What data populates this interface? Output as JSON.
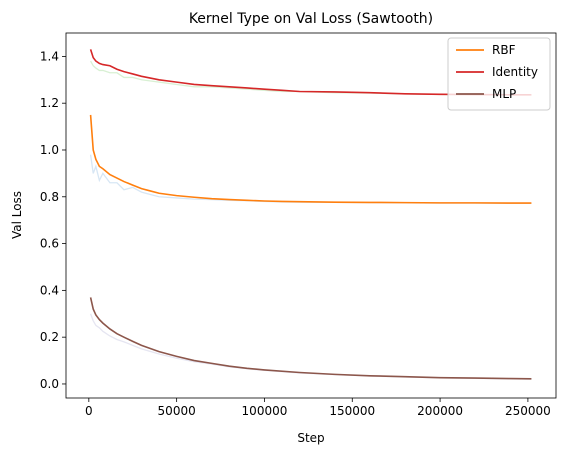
{
  "chart_data": {
    "type": "line",
    "title": "Kernel Type on Val Loss (Sawtooth)",
    "xlabel": "Step",
    "ylabel": "Val Loss",
    "xlim": [
      -13000,
      266000
    ],
    "ylim": [
      -0.06,
      1.5
    ],
    "xticks": [
      {
        "value": 0,
        "label": "0"
      },
      {
        "value": 50000,
        "label": "50000"
      },
      {
        "value": 100000,
        "label": "100000"
      },
      {
        "value": 150000,
        "label": "150000"
      },
      {
        "value": 200000,
        "label": "200000"
      },
      {
        "value": 250000,
        "label": "250000"
      }
    ],
    "yticks": [
      {
        "value": 0.0,
        "label": "0.0"
      },
      {
        "value": 0.2,
        "label": "0.2"
      },
      {
        "value": 0.4,
        "label": "0.4"
      },
      {
        "value": 0.6,
        "label": "0.6"
      },
      {
        "value": 0.8,
        "label": "0.8"
      },
      {
        "value": 1.0,
        "label": "1.0"
      },
      {
        "value": 1.2,
        "label": "1.2"
      },
      {
        "value": 1.4,
        "label": "1.4"
      }
    ],
    "grid": false,
    "legend_position": "top-right",
    "series": [
      {
        "name": "RBF",
        "color": "#ff7f0e",
        "raw_color": "#c6dbef",
        "x": [
          1000,
          2500,
          4000,
          6000,
          8000,
          12000,
          16000,
          20000,
          25000,
          30000,
          35000,
          40000,
          50000,
          60000,
          70000,
          80000,
          90000,
          100000,
          110000,
          120000,
          140000,
          160000,
          180000,
          200000,
          220000,
          240000,
          252000
        ],
        "y": [
          1.15,
          1.0,
          0.96,
          0.93,
          0.92,
          0.895,
          0.88,
          0.865,
          0.85,
          0.835,
          0.825,
          0.815,
          0.805,
          0.798,
          0.792,
          0.788,
          0.785,
          0.782,
          0.78,
          0.779,
          0.777,
          0.776,
          0.775,
          0.774,
          0.774,
          0.773,
          0.773
        ],
        "raw_y": [
          0.98,
          0.9,
          0.93,
          0.87,
          0.9,
          0.86,
          0.86,
          0.83,
          0.84,
          0.82,
          0.81,
          0.8,
          0.795,
          0.79,
          0.788,
          0.785,
          0.783,
          0.78,
          0.778,
          0.777,
          0.776,
          0.775,
          0.774,
          0.773,
          0.773,
          0.772,
          0.772
        ]
      },
      {
        "name": "Identity",
        "color": "#d62728",
        "raw_color": "#c7e9c0",
        "x": [
          1000,
          2500,
          4000,
          6000,
          8000,
          12000,
          16000,
          20000,
          25000,
          30000,
          40000,
          50000,
          60000,
          70000,
          80000,
          90000,
          100000,
          110000,
          120000,
          140000,
          160000,
          180000,
          200000,
          220000,
          240000,
          252000
        ],
        "y": [
          1.43,
          1.395,
          1.38,
          1.37,
          1.365,
          1.36,
          1.345,
          1.335,
          1.325,
          1.315,
          1.3,
          1.29,
          1.28,
          1.275,
          1.27,
          1.265,
          1.26,
          1.255,
          1.25,
          1.248,
          1.245,
          1.24,
          1.238,
          1.237,
          1.236,
          1.236
        ],
        "raw_y": [
          1.38,
          1.36,
          1.35,
          1.34,
          1.34,
          1.33,
          1.33,
          1.31,
          1.31,
          1.3,
          1.29,
          1.28,
          1.27,
          1.27,
          1.265,
          1.26,
          1.255,
          1.25,
          1.25,
          1.245,
          1.243,
          1.24,
          1.237,
          1.236,
          1.235,
          1.235
        ]
      },
      {
        "name": "MLP",
        "color": "#8c564b",
        "raw_color": "#dadaeb",
        "x": [
          1000,
          2500,
          4000,
          6000,
          8000,
          12000,
          16000,
          20000,
          25000,
          30000,
          40000,
          50000,
          60000,
          70000,
          80000,
          90000,
          100000,
          120000,
          140000,
          160000,
          180000,
          200000,
          220000,
          240000,
          252000
        ],
        "y": [
          0.37,
          0.32,
          0.295,
          0.275,
          0.26,
          0.235,
          0.215,
          0.2,
          0.182,
          0.165,
          0.138,
          0.118,
          0.1,
          0.088,
          0.076,
          0.067,
          0.06,
          0.049,
          0.041,
          0.035,
          0.031,
          0.027,
          0.025,
          0.023,
          0.022
        ],
        "raw_y": [
          0.3,
          0.27,
          0.25,
          0.24,
          0.225,
          0.205,
          0.19,
          0.18,
          0.165,
          0.15,
          0.128,
          0.11,
          0.095,
          0.085,
          0.073,
          0.065,
          0.058,
          0.047,
          0.04,
          0.034,
          0.03,
          0.026,
          0.024,
          0.022,
          0.021
        ]
      }
    ]
  }
}
